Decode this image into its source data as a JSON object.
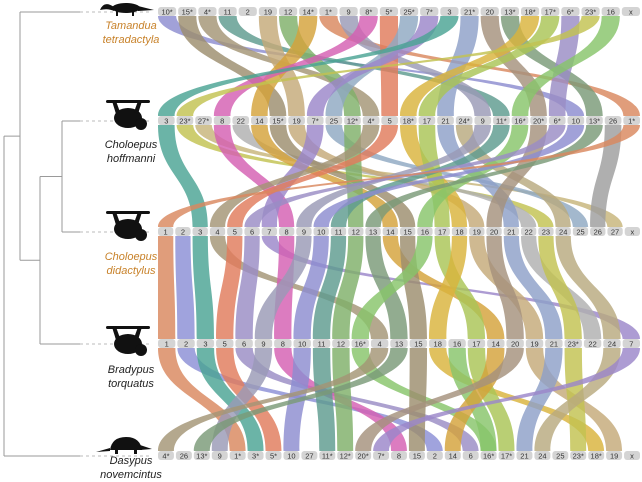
{
  "colors": {
    "highlight_species": "#c8822a",
    "normal_species": "#222222",
    "track_bar": "#d4d4d4"
  },
  "species": [
    {
      "id": "tamandua",
      "line1": "Tamandua",
      "line2": "tetradactyla",
      "highlight": true,
      "icon": "anteater-silhouette-icon"
    },
    {
      "id": "choloepus_h",
      "line1": "Choloepus",
      "line2": "hoffmanni",
      "highlight": false,
      "icon": "sloth-silhouette-icon"
    },
    {
      "id": "choloepus_d",
      "line1": "Choloepus",
      "line2": "didactylus",
      "highlight": true,
      "icon": "sloth-silhouette-icon"
    },
    {
      "id": "bradypus",
      "line1": "Bradypus",
      "line2": "torquatus",
      "highlight": false,
      "icon": "sloth-silhouette-icon"
    },
    {
      "id": "dasypus",
      "line1": "Dasypus",
      "line2": "novemcintus",
      "highlight": false,
      "icon": "armadillo-silhouette-icon"
    }
  ],
  "tracks": [
    {
      "species": "tamandua",
      "labels": [
        "10*",
        "15*",
        "4*",
        "11",
        "2",
        "19",
        "12",
        "14*",
        "1*",
        "9",
        "8*",
        "5*",
        "25*",
        "7*",
        "3",
        "21*",
        "20",
        "13*",
        "18*",
        "17*",
        "6*",
        "23*",
        "16",
        "x"
      ]
    },
    {
      "species": "choloepus_h",
      "labels": [
        "3",
        "23*",
        "27*",
        "8",
        "22",
        "14",
        "15*",
        "19",
        "7*",
        "25",
        "12*",
        "4*",
        "5",
        "18*",
        "17",
        "21",
        "24*",
        "9",
        "11*",
        "16*",
        "20*",
        "6*",
        "10",
        "13*",
        "26",
        "1*"
      ]
    },
    {
      "species": "choloepus_d",
      "labels": [
        "1",
        "2",
        "3",
        "4",
        "5",
        "6",
        "7",
        "8",
        "9",
        "10",
        "11",
        "12",
        "13",
        "14",
        "15",
        "16",
        "17",
        "18",
        "19",
        "20",
        "21",
        "22",
        "23",
        "24",
        "25",
        "26",
        "27",
        "x"
      ]
    },
    {
      "species": "bradypus",
      "labels": [
        "1",
        "2",
        "3",
        "5",
        "6",
        "9",
        "8",
        "10",
        "11",
        "12",
        "16*",
        "4",
        "13",
        "15",
        "18",
        "16",
        "17",
        "14",
        "20",
        "19",
        "21",
        "23*",
        "22",
        "24",
        "7"
      ]
    },
    {
      "species": "dasypus",
      "labels": [
        "4*",
        "26",
        "13*",
        "9",
        "1*",
        "3*",
        "5*",
        "10",
        "27",
        "11*",
        "12*",
        "20*",
        "7*",
        "8",
        "15",
        "2",
        "14",
        "6",
        "16*",
        "17*",
        "21",
        "24",
        "25",
        "23*",
        "18*",
        "19",
        "x"
      ]
    }
  ]
}
